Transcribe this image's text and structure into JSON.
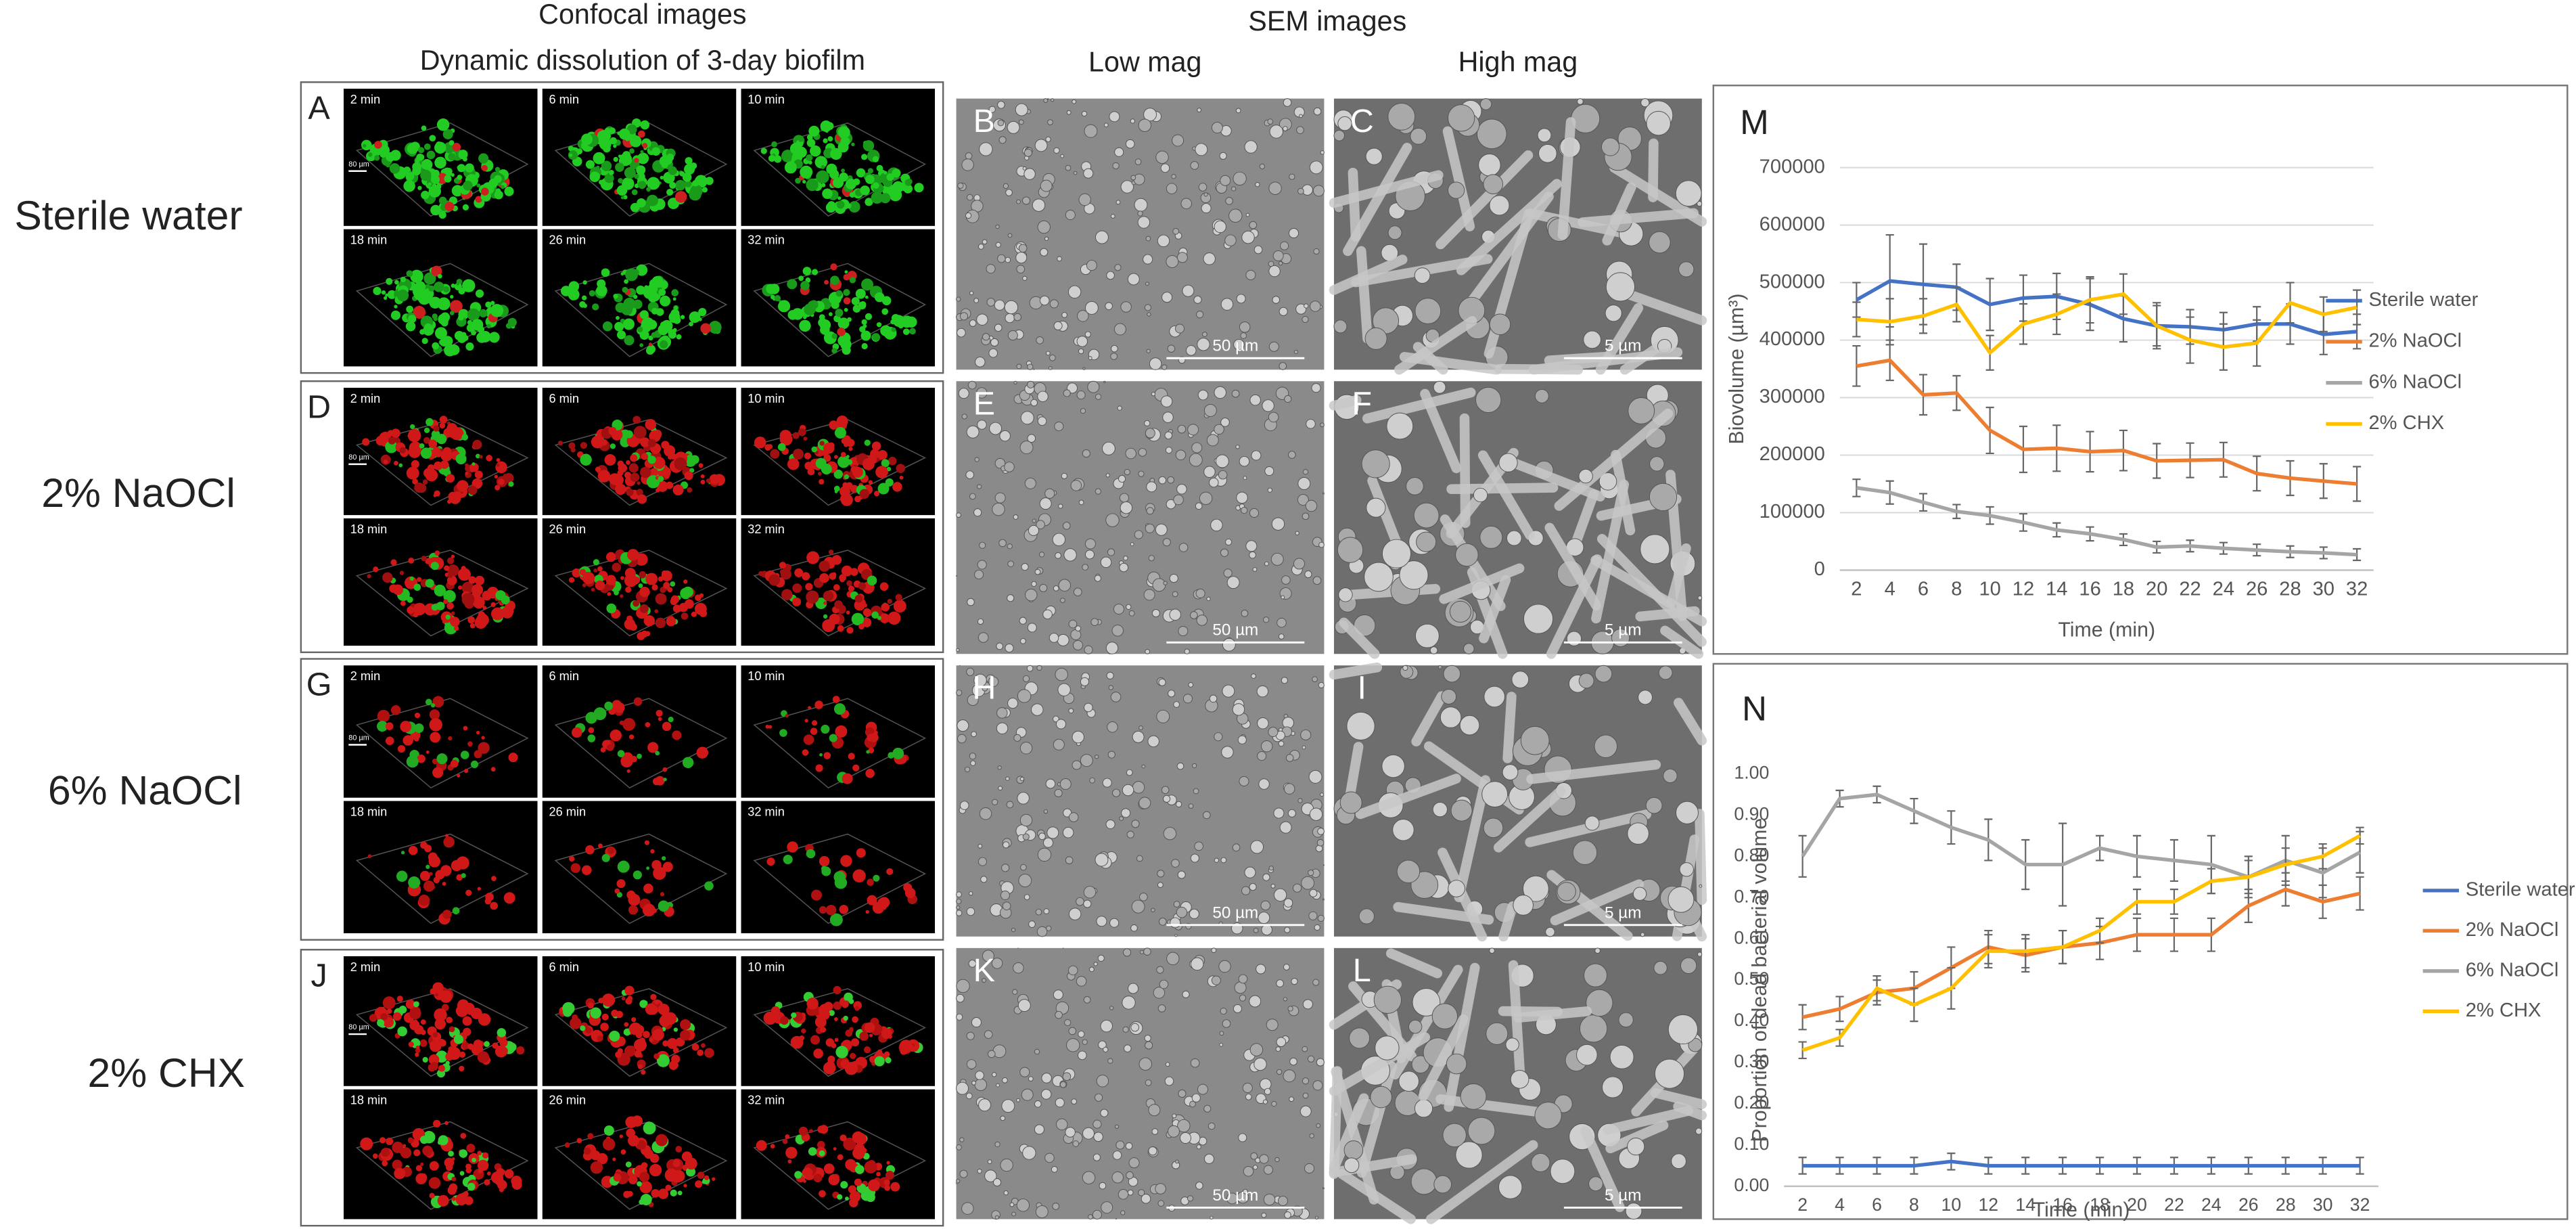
{
  "headers": {
    "confocal_1": "Confocal images",
    "confocal_2": "Dynamic dissolution of 3-day biofilm",
    "sem": "SEM images",
    "low_mag": "Low mag",
    "high_mag": "High mag"
  },
  "row_labels": [
    "Sterile water",
    "2% NaOCl",
    "6% NaOCl",
    "2% CHX"
  ],
  "confocal": {
    "letters": [
      "A",
      "D",
      "G",
      "J"
    ],
    "times": [
      "2 min",
      "6 min",
      "10 min",
      "18 min",
      "26 min",
      "32 min"
    ],
    "scale": "80 µm"
  },
  "sem": {
    "low_letters": [
      "B",
      "E",
      "H",
      "K"
    ],
    "high_letters": [
      "C",
      "F",
      "I",
      "L"
    ],
    "low_scale": "50 µm",
    "high_scale": "5 µm"
  },
  "chart_data": [
    {
      "type": "line",
      "panel": "M",
      "y_label": "Biovolume (µm³)",
      "x_label": "Time (min)",
      "categories": [
        "2",
        "4",
        "6",
        "8",
        "10",
        "12",
        "14",
        "16",
        "18",
        "20",
        "22",
        "24",
        "26",
        "28",
        "30",
        "32"
      ],
      "ylim": [
        0,
        700000
      ],
      "yticks": [
        0,
        100000,
        200000,
        300000,
        400000,
        500000,
        600000,
        700000
      ],
      "grid": true,
      "legend": "right",
      "series": [
        {
          "name": "Sterile water",
          "color": "#4472c4",
          "values": [
            470000,
            503000,
            497000,
            492000,
            462000,
            473000,
            476000,
            462000,
            437000,
            425000,
            423000,
            418000,
            428000,
            428000,
            410000,
            415000
          ],
          "errors": [
            30000,
            80000,
            70000,
            40000,
            45000,
            40000,
            40000,
            45000,
            40000,
            35000,
            30000,
            30000,
            30000,
            35000,
            35000,
            30000
          ]
        },
        {
          "name": "2% NaOCl",
          "color": "#ed7d31",
          "values": [
            355000,
            365000,
            305000,
            308000,
            243000,
            210000,
            212000,
            206000,
            208000,
            190000,
            191000,
            192000,
            168000,
            160000,
            155000,
            150000
          ],
          "errors": [
            35000,
            35000,
            35000,
            30000,
            40000,
            40000,
            40000,
            35000,
            35000,
            30000,
            30000,
            30000,
            30000,
            30000,
            30000,
            30000
          ]
        },
        {
          "name": "6% NaOCl",
          "color": "#a5a5a5",
          "values": [
            143000,
            135000,
            118000,
            102000,
            95000,
            83000,
            70000,
            63000,
            53000,
            40000,
            42000,
            38000,
            35000,
            32000,
            30000,
            27000
          ],
          "errors": [
            15000,
            20000,
            15000,
            12000,
            15000,
            15000,
            12000,
            12000,
            10000,
            10000,
            10000,
            10000,
            10000,
            10000,
            10000,
            10000
          ]
        },
        {
          "name": "2% CHX",
          "color": "#ffc000",
          "values": [
            436000,
            432000,
            442000,
            462000,
            378000,
            428000,
            445000,
            470000,
            480000,
            425000,
            400000,
            388000,
            395000,
            465000,
            445000,
            457000
          ],
          "errors": [
            30000,
            40000,
            30000,
            30000,
            30000,
            35000,
            35000,
            40000,
            35000,
            40000,
            40000,
            40000,
            40000,
            35000,
            30000,
            30000
          ]
        }
      ]
    },
    {
      "type": "line",
      "panel": "N",
      "y_label": "Proportion of dead bacterial volume",
      "x_label": "Time (min)",
      "categories": [
        "2",
        "4",
        "6",
        "8",
        "10",
        "12",
        "14",
        "16",
        "18",
        "20",
        "22",
        "24",
        "26",
        "28",
        "30",
        "32"
      ],
      "ylim": [
        0,
        1
      ],
      "yticks": [
        {
          "value": 0,
          "label": "0.00"
        },
        {
          "value": 0.1,
          "label": "0.10"
        },
        {
          "value": 0.2,
          "label": "0.20"
        },
        {
          "value": 0.3,
          "label": "0.30"
        },
        {
          "value": 0.4,
          "label": "0.40"
        },
        {
          "value": 0.5,
          "label": "0.50"
        },
        {
          "value": 0.6,
          "label": "0.60"
        },
        {
          "value": 0.7,
          "label": "0.70"
        },
        {
          "value": 0.8,
          "label": "0.80"
        },
        {
          "value": 0.9,
          "label": "0.90"
        },
        {
          "value": 1,
          "label": "1.00"
        }
      ],
      "grid": false,
      "legend": "right",
      "series": [
        {
          "name": "Sterile water",
          "color": "#4472c4",
          "values": [
            0.05,
            0.05,
            0.05,
            0.05,
            0.06,
            0.05,
            0.05,
            0.05,
            0.05,
            0.05,
            0.05,
            0.05,
            0.05,
            0.05,
            0.05,
            0.05
          ],
          "errors": [
            0.02,
            0.02,
            0.02,
            0.02,
            0.02,
            0.02,
            0.02,
            0.02,
            0.02,
            0.02,
            0.02,
            0.02,
            0.02,
            0.02,
            0.02,
            0.02
          ]
        },
        {
          "name": "2% NaOCl",
          "color": "#ed7d31",
          "values": [
            0.41,
            0.43,
            0.47,
            0.48,
            0.53,
            0.58,
            0.56,
            0.58,
            0.59,
            0.61,
            0.61,
            0.61,
            0.68,
            0.72,
            0.69,
            0.71
          ],
          "errors": [
            0.03,
            0.03,
            0.03,
            0.04,
            0.05,
            0.04,
            0.04,
            0.04,
            0.04,
            0.04,
            0.04,
            0.04,
            0.04,
            0.04,
            0.04,
            0.04
          ]
        },
        {
          "name": "6% NaOCl",
          "color": "#a5a5a5",
          "values": [
            0.8,
            0.94,
            0.95,
            0.91,
            0.87,
            0.84,
            0.78,
            0.78,
            0.82,
            0.8,
            0.79,
            0.78,
            0.75,
            0.79,
            0.76,
            0.81
          ],
          "errors": [
            0.05,
            0.02,
            0.02,
            0.03,
            0.04,
            0.05,
            0.06,
            0.1,
            0.03,
            0.05,
            0.05,
            0.07,
            0.05,
            0.06,
            0.06,
            0.05
          ]
        },
        {
          "name": "2% CHX",
          "color": "#ffc000",
          "values": [
            0.33,
            0.36,
            0.48,
            0.44,
            0.48,
            0.57,
            0.57,
            0.58,
            0.62,
            0.69,
            0.69,
            0.74,
            0.75,
            0.78,
            0.8,
            0.85
          ],
          "errors": [
            0.02,
            0.02,
            0.03,
            0.04,
            0.05,
            0.04,
            0.04,
            0.04,
            0.03,
            0.03,
            0.03,
            0.03,
            0.04,
            0.04,
            0.03,
            0.02
          ]
        }
      ]
    }
  ]
}
